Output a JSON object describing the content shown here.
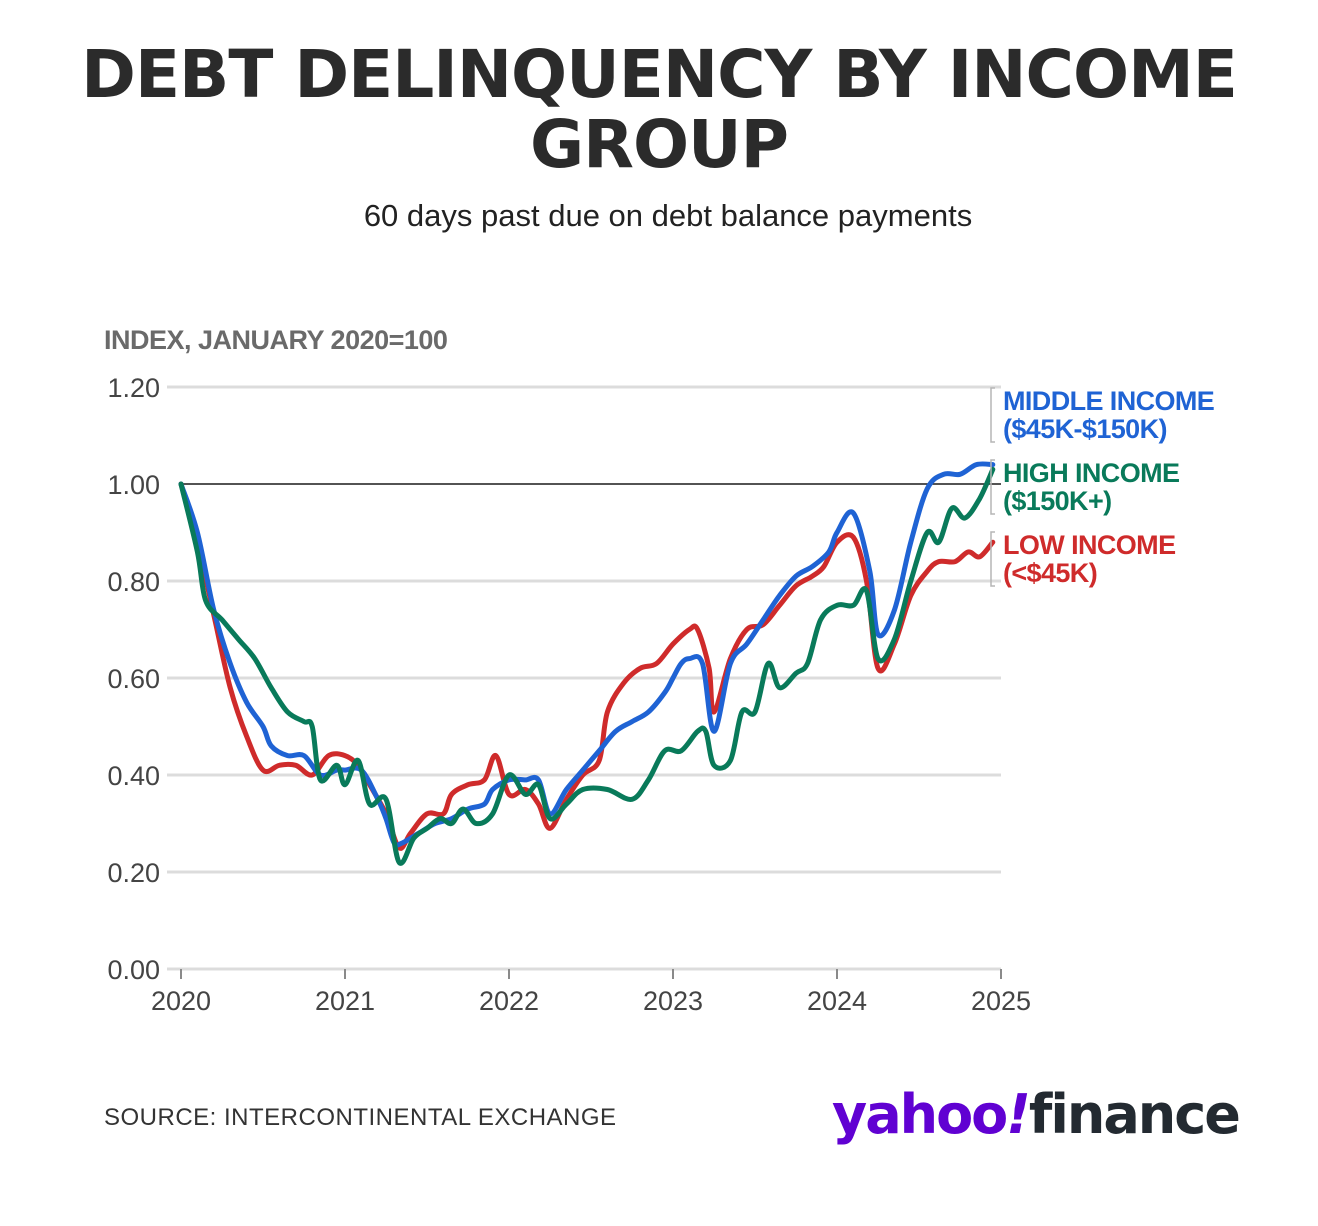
{
  "header": {
    "title": "DEBT DELINQUENCY BY INCOME GROUP",
    "subtitle": "60 days past due on debt balance payments"
  },
  "footer": {
    "source": "SOURCE: INTERCONTINENTAL EXCHANGE",
    "logo": {
      "part1": "yahoo",
      "part2": "!",
      "part3": "finance"
    }
  },
  "colors": {
    "middle": "#1f63d4",
    "high": "#097a5a",
    "low": "#cf2b2b",
    "grid": "#dcdcdc",
    "reference": "#1a1a1a",
    "axis_text": "#444444",
    "logo_purple": "#6001d2"
  },
  "chart_data": {
    "type": "line",
    "ylabel": "INDEX, JANUARY 2020=100",
    "xlabel": "",
    "ylim": [
      0,
      1.2
    ],
    "xlim": [
      2020,
      2025
    ],
    "yticks": [
      "0.00",
      "0.20",
      "0.40",
      "0.60",
      "0.80",
      "1.00",
      "1.20"
    ],
    "xticks": [
      "2020",
      "2021",
      "2022",
      "2023",
      "2024",
      "2025"
    ],
    "reference_line": 1.0,
    "grid": true,
    "legend": "right-end",
    "series": [
      {
        "key": "middle",
        "label_lines": [
          "MIDDLE INCOME",
          "($45K-$150K)"
        ],
        "points": [
          [
            2020.0,
            1.0
          ],
          [
            2020.1,
            0.9
          ],
          [
            2020.2,
            0.74
          ],
          [
            2020.3,
            0.63
          ],
          [
            2020.4,
            0.55
          ],
          [
            2020.5,
            0.5
          ],
          [
            2020.55,
            0.46
          ],
          [
            2020.65,
            0.44
          ],
          [
            2020.75,
            0.44
          ],
          [
            2020.85,
            0.4
          ],
          [
            2020.95,
            0.41
          ],
          [
            2021.0,
            0.41
          ],
          [
            2021.1,
            0.41
          ],
          [
            2021.2,
            0.35
          ],
          [
            2021.25,
            0.31
          ],
          [
            2021.3,
            0.26
          ],
          [
            2021.35,
            0.26
          ],
          [
            2021.45,
            0.28
          ],
          [
            2021.55,
            0.3
          ],
          [
            2021.65,
            0.31
          ],
          [
            2021.75,
            0.33
          ],
          [
            2021.85,
            0.34
          ],
          [
            2021.9,
            0.37
          ],
          [
            2022.0,
            0.39
          ],
          [
            2022.1,
            0.39
          ],
          [
            2022.18,
            0.39
          ],
          [
            2022.25,
            0.32
          ],
          [
            2022.35,
            0.37
          ],
          [
            2022.45,
            0.41
          ],
          [
            2022.55,
            0.45
          ],
          [
            2022.65,
            0.49
          ],
          [
            2022.75,
            0.51
          ],
          [
            2022.85,
            0.53
          ],
          [
            2022.95,
            0.57
          ],
          [
            2023.0,
            0.6
          ],
          [
            2023.05,
            0.63
          ],
          [
            2023.1,
            0.64
          ],
          [
            2023.18,
            0.63
          ],
          [
            2023.25,
            0.49
          ],
          [
            2023.35,
            0.63
          ],
          [
            2023.45,
            0.67
          ],
          [
            2023.55,
            0.72
          ],
          [
            2023.65,
            0.77
          ],
          [
            2023.75,
            0.81
          ],
          [
            2023.85,
            0.83
          ],
          [
            2023.95,
            0.86
          ],
          [
            2024.0,
            0.9
          ],
          [
            2024.1,
            0.94
          ],
          [
            2024.2,
            0.82
          ],
          [
            2024.25,
            0.69
          ],
          [
            2024.35,
            0.74
          ],
          [
            2024.45,
            0.88
          ],
          [
            2024.55,
            0.99
          ],
          [
            2024.65,
            1.02
          ],
          [
            2024.75,
            1.02
          ],
          [
            2024.85,
            1.04
          ],
          [
            2024.95,
            1.04
          ]
        ]
      },
      {
        "key": "high",
        "label_lines": [
          "HIGH INCOME",
          "($150K+)"
        ],
        "points": [
          [
            2020.0,
            1.0
          ],
          [
            2020.1,
            0.86
          ],
          [
            2020.15,
            0.76
          ],
          [
            2020.25,
            0.72
          ],
          [
            2020.35,
            0.68
          ],
          [
            2020.45,
            0.64
          ],
          [
            2020.55,
            0.58
          ],
          [
            2020.65,
            0.53
          ],
          [
            2020.75,
            0.51
          ],
          [
            2020.8,
            0.5
          ],
          [
            2020.85,
            0.39
          ],
          [
            2020.95,
            0.42
          ],
          [
            2021.0,
            0.38
          ],
          [
            2021.08,
            0.43
          ],
          [
            2021.15,
            0.34
          ],
          [
            2021.25,
            0.35
          ],
          [
            2021.33,
            0.22
          ],
          [
            2021.42,
            0.27
          ],
          [
            2021.5,
            0.29
          ],
          [
            2021.58,
            0.31
          ],
          [
            2021.65,
            0.3
          ],
          [
            2021.72,
            0.33
          ],
          [
            2021.8,
            0.3
          ],
          [
            2021.9,
            0.32
          ],
          [
            2022.0,
            0.4
          ],
          [
            2022.1,
            0.36
          ],
          [
            2022.18,
            0.38
          ],
          [
            2022.25,
            0.31
          ],
          [
            2022.35,
            0.34
          ],
          [
            2022.45,
            0.37
          ],
          [
            2022.6,
            0.37
          ],
          [
            2022.75,
            0.35
          ],
          [
            2022.85,
            0.39
          ],
          [
            2022.95,
            0.45
          ],
          [
            2023.05,
            0.45
          ],
          [
            2023.15,
            0.49
          ],
          [
            2023.2,
            0.49
          ],
          [
            2023.25,
            0.42
          ],
          [
            2023.35,
            0.43
          ],
          [
            2023.42,
            0.53
          ],
          [
            2023.5,
            0.53
          ],
          [
            2023.58,
            0.63
          ],
          [
            2023.65,
            0.58
          ],
          [
            2023.75,
            0.61
          ],
          [
            2023.82,
            0.63
          ],
          [
            2023.9,
            0.72
          ],
          [
            2024.0,
            0.75
          ],
          [
            2024.1,
            0.75
          ],
          [
            2024.18,
            0.78
          ],
          [
            2024.25,
            0.64
          ],
          [
            2024.35,
            0.68
          ],
          [
            2024.45,
            0.8
          ],
          [
            2024.55,
            0.9
          ],
          [
            2024.62,
            0.88
          ],
          [
            2024.7,
            0.95
          ],
          [
            2024.78,
            0.93
          ],
          [
            2024.87,
            0.97
          ],
          [
            2024.95,
            1.03
          ]
        ]
      },
      {
        "key": "low",
        "label_lines": [
          "LOW INCOME",
          "(<$45K)"
        ],
        "points": [
          [
            2020.0,
            1.0
          ],
          [
            2020.1,
            0.88
          ],
          [
            2020.2,
            0.73
          ],
          [
            2020.3,
            0.58
          ],
          [
            2020.4,
            0.48
          ],
          [
            2020.5,
            0.41
          ],
          [
            2020.6,
            0.42
          ],
          [
            2020.7,
            0.42
          ],
          [
            2020.8,
            0.4
          ],
          [
            2020.9,
            0.44
          ],
          [
            2021.0,
            0.44
          ],
          [
            2021.08,
            0.42
          ],
          [
            2021.15,
            0.38
          ],
          [
            2021.25,
            0.32
          ],
          [
            2021.33,
            0.25
          ],
          [
            2021.4,
            0.28
          ],
          [
            2021.5,
            0.32
          ],
          [
            2021.6,
            0.32
          ],
          [
            2021.65,
            0.36
          ],
          [
            2021.75,
            0.38
          ],
          [
            2021.85,
            0.39
          ],
          [
            2021.92,
            0.44
          ],
          [
            2022.0,
            0.36
          ],
          [
            2022.1,
            0.37
          ],
          [
            2022.18,
            0.34
          ],
          [
            2022.25,
            0.29
          ],
          [
            2022.35,
            0.35
          ],
          [
            2022.45,
            0.4
          ],
          [
            2022.55,
            0.43
          ],
          [
            2022.6,
            0.53
          ],
          [
            2022.7,
            0.59
          ],
          [
            2022.8,
            0.62
          ],
          [
            2022.9,
            0.63
          ],
          [
            2023.0,
            0.67
          ],
          [
            2023.1,
            0.7
          ],
          [
            2023.15,
            0.7
          ],
          [
            2023.22,
            0.62
          ],
          [
            2023.25,
            0.53
          ],
          [
            2023.35,
            0.64
          ],
          [
            2023.45,
            0.7
          ],
          [
            2023.55,
            0.71
          ],
          [
            2023.65,
            0.75
          ],
          [
            2023.75,
            0.79
          ],
          [
            2023.85,
            0.81
          ],
          [
            2023.92,
            0.83
          ],
          [
            2024.0,
            0.88
          ],
          [
            2024.1,
            0.89
          ],
          [
            2024.18,
            0.8
          ],
          [
            2024.25,
            0.62
          ],
          [
            2024.35,
            0.67
          ],
          [
            2024.45,
            0.77
          ],
          [
            2024.55,
            0.82
          ],
          [
            2024.62,
            0.84
          ],
          [
            2024.72,
            0.84
          ],
          [
            2024.8,
            0.86
          ],
          [
            2024.87,
            0.85
          ],
          [
            2024.95,
            0.88
          ]
        ]
      }
    ]
  }
}
